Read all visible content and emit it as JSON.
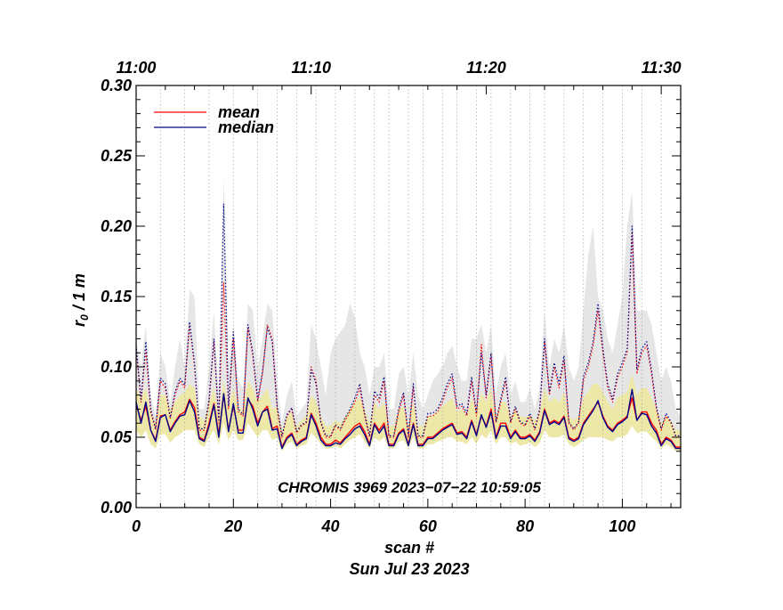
{
  "chart_data": {
    "type": "line",
    "title": "",
    "xlabel": "scan #",
    "date_label": "Sun Jul 23 2023",
    "ylabel": "r",
    "ylabel_sub": "0",
    "ylabel_suffix": " / 1 m",
    "annotation": "CHROMIS 3969 2023−07−22 10:59:05",
    "xlim": [
      0,
      112
    ],
    "ylim": [
      0.0,
      0.3
    ],
    "x_ticks": [
      0,
      20,
      40,
      60,
      80,
      100
    ],
    "x_tick_labels": [
      "0",
      "20",
      "40",
      "60",
      "80",
      "100"
    ],
    "y_ticks": [
      0.0,
      0.05,
      0.1,
      0.15,
      0.2,
      0.25,
      0.3
    ],
    "y_tick_labels": [
      "0.00",
      "0.05",
      "0.10",
      "0.15",
      "0.20",
      "0.25",
      "0.30"
    ],
    "top_axis": {
      "ticks": [
        0,
        36,
        72,
        108
      ],
      "labels": [
        "11:00",
        "11:10",
        "11:20",
        "11:30"
      ]
    },
    "dotted_vertical_lines": [
      5,
      10,
      15,
      20,
      25,
      29,
      33,
      37,
      41,
      45,
      49,
      52,
      56,
      59,
      63,
      66,
      70,
      73,
      77,
      81,
      84,
      88,
      92,
      96,
      100,
      104,
      108
    ],
    "legend": {
      "position": "top-left",
      "entries": [
        {
          "label": "mean",
          "color": "#ff0000"
        },
        {
          "label": "median",
          "color": "#00008b"
        }
      ]
    },
    "colors": {
      "mean": "#ff0000",
      "median": "#00008b",
      "gray_band": "#e6e6e6",
      "yellow_band": "#eee8a8"
    },
    "x": [
      0,
      1,
      2,
      3,
      4,
      5,
      6,
      7,
      8,
      9,
      10,
      11,
      12,
      13,
      14,
      15,
      16,
      17,
      18,
      19,
      20,
      21,
      22,
      23,
      24,
      25,
      26,
      27,
      28,
      29,
      30,
      31,
      32,
      33,
      34,
      35,
      36,
      37,
      38,
      39,
      40,
      41,
      42,
      43,
      44,
      45,
      46,
      47,
      48,
      49,
      50,
      51,
      52,
      53,
      54,
      55,
      56,
      57,
      58,
      59,
      60,
      61,
      62,
      63,
      64,
      65,
      66,
      67,
      68,
      69,
      70,
      71,
      72,
      73,
      74,
      75,
      76,
      77,
      78,
      79,
      80,
      81,
      82,
      83,
      84,
      85,
      86,
      87,
      88,
      89,
      90,
      91,
      92,
      93,
      94,
      95,
      96,
      97,
      98,
      99,
      100,
      101,
      102,
      103,
      104,
      105,
      106,
      107,
      108,
      109,
      110,
      111,
      112
    ],
    "series": [
      {
        "name": "mean",
        "style": "solid",
        "values": [
          0.073,
          0.062,
          0.072,
          0.055,
          0.048,
          0.065,
          0.066,
          0.055,
          0.061,
          0.066,
          0.068,
          0.077,
          0.071,
          0.05,
          0.048,
          0.06,
          0.074,
          0.052,
          0.08,
          0.055,
          0.072,
          0.055,
          0.055,
          0.077,
          0.072,
          0.06,
          0.068,
          0.072,
          0.056,
          0.058,
          0.043,
          0.05,
          0.053,
          0.045,
          0.048,
          0.05,
          0.067,
          0.06,
          0.05,
          0.045,
          0.045,
          0.048,
          0.046,
          0.05,
          0.054,
          0.058,
          0.06,
          0.054,
          0.045,
          0.06,
          0.055,
          0.06,
          0.045,
          0.045,
          0.053,
          0.056,
          0.045,
          0.06,
          0.045,
          0.045,
          0.05,
          0.05,
          0.053,
          0.056,
          0.058,
          0.06,
          0.053,
          0.054,
          0.05,
          0.062,
          0.052,
          0.065,
          0.058,
          0.07,
          0.05,
          0.06,
          0.06,
          0.05,
          0.055,
          0.05,
          0.05,
          0.052,
          0.048,
          0.054,
          0.07,
          0.06,
          0.062,
          0.06,
          0.065,
          0.05,
          0.048,
          0.05,
          0.06,
          0.065,
          0.07,
          0.075,
          0.065,
          0.058,
          0.055,
          0.06,
          0.062,
          0.065,
          0.078,
          0.062,
          0.068,
          0.068,
          0.06,
          0.055,
          0.045,
          0.05,
          0.048,
          0.043,
          0.043
        ]
      },
      {
        "name": "median",
        "style": "solid",
        "values": [
          0.075,
          0.06,
          0.075,
          0.055,
          0.047,
          0.064,
          0.066,
          0.054,
          0.06,
          0.065,
          0.066,
          0.076,
          0.068,
          0.049,
          0.047,
          0.058,
          0.073,
          0.05,
          0.081,
          0.054,
          0.074,
          0.053,
          0.053,
          0.078,
          0.07,
          0.058,
          0.068,
          0.07,
          0.055,
          0.056,
          0.042,
          0.049,
          0.052,
          0.044,
          0.047,
          0.049,
          0.066,
          0.058,
          0.048,
          0.044,
          0.044,
          0.046,
          0.045,
          0.049,
          0.052,
          0.056,
          0.058,
          0.052,
          0.044,
          0.059,
          0.053,
          0.058,
          0.044,
          0.044,
          0.052,
          0.055,
          0.044,
          0.059,
          0.044,
          0.044,
          0.049,
          0.049,
          0.052,
          0.055,
          0.057,
          0.059,
          0.052,
          0.053,
          0.049,
          0.061,
          0.051,
          0.066,
          0.057,
          0.068,
          0.049,
          0.058,
          0.058,
          0.049,
          0.054,
          0.049,
          0.049,
          0.051,
          0.047,
          0.053,
          0.069,
          0.059,
          0.061,
          0.059,
          0.064,
          0.049,
          0.047,
          0.049,
          0.059,
          0.064,
          0.069,
          0.076,
          0.064,
          0.057,
          0.054,
          0.059,
          0.061,
          0.064,
          0.084,
          0.062,
          0.067,
          0.066,
          0.058,
          0.053,
          0.044,
          0.049,
          0.047,
          0.042,
          0.042
        ]
      },
      {
        "name": "mean (upper)",
        "style": "dotted",
        "values": [
          0.113,
          0.075,
          0.112,
          0.068,
          0.055,
          0.09,
          0.085,
          0.063,
          0.08,
          0.09,
          0.085,
          0.13,
          0.1,
          0.055,
          0.055,
          0.075,
          0.118,
          0.06,
          0.16,
          0.07,
          0.12,
          0.068,
          0.065,
          0.128,
          0.108,
          0.075,
          0.095,
          0.13,
          0.12,
          0.07,
          0.05,
          0.065,
          0.07,
          0.053,
          0.058,
          0.06,
          0.1,
          0.09,
          0.06,
          0.05,
          0.05,
          0.058,
          0.055,
          0.062,
          0.068,
          0.075,
          0.085,
          0.065,
          0.05,
          0.08,
          0.075,
          0.09,
          0.05,
          0.05,
          0.068,
          0.08,
          0.05,
          0.085,
          0.05,
          0.05,
          0.065,
          0.065,
          0.068,
          0.075,
          0.085,
          0.092,
          0.07,
          0.072,
          0.065,
          0.09,
          0.065,
          0.116,
          0.078,
          0.108,
          0.06,
          0.075,
          0.09,
          0.06,
          0.07,
          0.06,
          0.058,
          0.065,
          0.055,
          0.068,
          0.118,
          0.08,
          0.1,
          0.085,
          0.105,
          0.06,
          0.055,
          0.06,
          0.09,
          0.1,
          0.115,
          0.14,
          0.11,
          0.085,
          0.075,
          0.092,
          0.1,
          0.11,
          0.195,
          0.095,
          0.11,
          0.115,
          0.095,
          0.07,
          0.055,
          0.065,
          0.06,
          0.05,
          0.05
        ]
      },
      {
        "name": "median (upper)",
        "style": "dotted",
        "values": [
          0.115,
          0.077,
          0.118,
          0.07,
          0.056,
          0.092,
          0.088,
          0.064,
          0.082,
          0.092,
          0.087,
          0.132,
          0.103,
          0.056,
          0.056,
          0.077,
          0.12,
          0.062,
          0.216,
          0.072,
          0.125,
          0.07,
          0.066,
          0.13,
          0.11,
          0.077,
          0.097,
          0.128,
          0.118,
          0.072,
          0.051,
          0.066,
          0.071,
          0.054,
          0.059,
          0.061,
          0.098,
          0.088,
          0.061,
          0.051,
          0.051,
          0.059,
          0.056,
          0.064,
          0.07,
          0.078,
          0.088,
          0.067,
          0.051,
          0.083,
          0.078,
          0.093,
          0.051,
          0.051,
          0.07,
          0.082,
          0.051,
          0.088,
          0.051,
          0.051,
          0.067,
          0.067,
          0.07,
          0.078,
          0.088,
          0.095,
          0.072,
          0.074,
          0.067,
          0.093,
          0.067,
          0.11,
          0.08,
          0.11,
          0.061,
          0.077,
          0.093,
          0.061,
          0.072,
          0.061,
          0.059,
          0.067,
          0.056,
          0.07,
          0.12,
          0.082,
          0.103,
          0.088,
          0.108,
          0.061,
          0.056,
          0.061,
          0.093,
          0.103,
          0.118,
          0.145,
          0.113,
          0.088,
          0.077,
          0.095,
          0.103,
          0.113,
          0.2,
          0.098,
          0.113,
          0.118,
          0.098,
          0.072,
          0.056,
          0.067,
          0.061,
          0.051,
          0.051
        ]
      }
    ],
    "bands": [
      {
        "name": "gray range",
        "lower": [
          0.06,
          0.06,
          0.06,
          0.055,
          0.05,
          0.06,
          0.06,
          0.055,
          0.058,
          0.06,
          0.062,
          0.065,
          0.062,
          0.052,
          0.05,
          0.058,
          0.065,
          0.052,
          0.07,
          0.055,
          0.065,
          0.055,
          0.055,
          0.068,
          0.065,
          0.058,
          0.062,
          0.065,
          0.055,
          0.056,
          0.045,
          0.05,
          0.052,
          0.046,
          0.048,
          0.05,
          0.062,
          0.058,
          0.05,
          0.046,
          0.046,
          0.048,
          0.046,
          0.05,
          0.053,
          0.056,
          0.058,
          0.053,
          0.046,
          0.057,
          0.053,
          0.057,
          0.046,
          0.046,
          0.052,
          0.054,
          0.046,
          0.057,
          0.046,
          0.046,
          0.05,
          0.05,
          0.052,
          0.054,
          0.056,
          0.057,
          0.052,
          0.053,
          0.05,
          0.058,
          0.051,
          0.06,
          0.056,
          0.064,
          0.05,
          0.057,
          0.057,
          0.05,
          0.053,
          0.05,
          0.05,
          0.051,
          0.048,
          0.052,
          0.064,
          0.057,
          0.058,
          0.057,
          0.06,
          0.05,
          0.048,
          0.05,
          0.057,
          0.06,
          0.064,
          0.068,
          0.06,
          0.056,
          0.053,
          0.057,
          0.058,
          0.06,
          0.07,
          0.06,
          0.062,
          0.062,
          0.057,
          0.053,
          0.046,
          0.05,
          0.048,
          0.045,
          0.045
        ],
        "upper": [
          0.12,
          0.1,
          0.13,
          0.08,
          0.065,
          0.11,
          0.1,
          0.075,
          0.1,
          0.12,
          0.1,
          0.155,
          0.15,
          0.07,
          0.07,
          0.1,
          0.14,
          0.08,
          0.235,
          0.1,
          0.13,
          0.09,
          0.085,
          0.145,
          0.14,
          0.1,
          0.12,
          0.145,
          0.14,
          0.09,
          0.06,
          0.08,
          0.09,
          0.065,
          0.07,
          0.075,
          0.13,
          0.12,
          0.1,
          0.08,
          0.11,
          0.12,
          0.125,
          0.13,
          0.145,
          0.135,
          0.11,
          0.1,
          0.08,
          0.1,
          0.1,
          0.11,
          0.07,
          0.07,
          0.095,
          0.1,
          0.08,
          0.11,
          0.08,
          0.07,
          0.08,
          0.09,
          0.095,
          0.1,
          0.11,
          0.115,
          0.1,
          0.09,
          0.09,
          0.12,
          0.12,
          0.13,
          0.11,
          0.13,
          0.08,
          0.1,
          0.11,
          0.08,
          0.09,
          0.075,
          0.075,
          0.085,
          0.07,
          0.085,
          0.14,
          0.1,
          0.12,
          0.11,
          0.13,
          0.1,
          0.09,
          0.1,
          0.14,
          0.18,
          0.2,
          0.15,
          0.14,
          0.12,
          0.11,
          0.13,
          0.15,
          0.2,
          0.225,
          0.14,
          0.14,
          0.14,
          0.13,
          0.11,
          0.09,
          0.1,
          0.09,
          0.07,
          0.065
        ]
      },
      {
        "name": "yellow range",
        "lower": [
          0.055,
          0.05,
          0.055,
          0.045,
          0.042,
          0.052,
          0.052,
          0.046,
          0.05,
          0.052,
          0.055,
          0.055,
          0.055,
          0.045,
          0.043,
          0.05,
          0.055,
          0.045,
          0.06,
          0.048,
          0.055,
          0.048,
          0.048,
          0.06,
          0.055,
          0.05,
          0.055,
          0.055,
          0.048,
          0.05,
          0.04,
          0.045,
          0.047,
          0.042,
          0.044,
          0.045,
          0.053,
          0.05,
          0.045,
          0.042,
          0.042,
          0.044,
          0.042,
          0.045,
          0.048,
          0.05,
          0.052,
          0.047,
          0.042,
          0.05,
          0.047,
          0.05,
          0.042,
          0.042,
          0.047,
          0.048,
          0.042,
          0.05,
          0.042,
          0.042,
          0.045,
          0.045,
          0.047,
          0.048,
          0.05,
          0.05,
          0.047,
          0.047,
          0.045,
          0.05,
          0.045,
          0.052,
          0.049,
          0.055,
          0.045,
          0.05,
          0.05,
          0.045,
          0.047,
          0.044,
          0.045,
          0.046,
          0.043,
          0.046,
          0.055,
          0.05,
          0.05,
          0.05,
          0.052,
          0.045,
          0.043,
          0.045,
          0.048,
          0.05,
          0.05,
          0.05,
          0.05,
          0.048,
          0.047,
          0.05,
          0.05,
          0.052,
          0.058,
          0.053,
          0.054,
          0.054,
          0.05,
          0.047,
          0.042,
          0.045,
          0.043,
          0.04,
          0.04
        ],
        "upper": [
          0.085,
          0.078,
          0.085,
          0.068,
          0.06,
          0.08,
          0.08,
          0.07,
          0.075,
          0.08,
          0.082,
          0.088,
          0.085,
          0.065,
          0.062,
          0.075,
          0.085,
          0.065,
          0.09,
          0.07,
          0.085,
          0.07,
          0.07,
          0.09,
          0.085,
          0.075,
          0.08,
          0.085,
          0.07,
          0.072,
          0.055,
          0.065,
          0.068,
          0.058,
          0.062,
          0.065,
          0.08,
          0.075,
          0.065,
          0.058,
          0.058,
          0.062,
          0.06,
          0.065,
          0.07,
          0.075,
          0.078,
          0.07,
          0.06,
          0.075,
          0.07,
          0.075,
          0.058,
          0.058,
          0.07,
          0.072,
          0.058,
          0.075,
          0.058,
          0.058,
          0.065,
          0.065,
          0.068,
          0.072,
          0.075,
          0.078,
          0.068,
          0.07,
          0.065,
          0.078,
          0.068,
          0.082,
          0.075,
          0.085,
          0.065,
          0.075,
          0.075,
          0.065,
          0.07,
          0.065,
          0.064,
          0.066,
          0.062,
          0.068,
          0.085,
          0.075,
          0.078,
          0.075,
          0.082,
          0.065,
          0.062,
          0.065,
          0.078,
          0.082,
          0.088,
          0.088,
          0.082,
          0.075,
          0.07,
          0.078,
          0.08,
          0.082,
          0.095,
          0.08,
          0.085,
          0.085,
          0.078,
          0.07,
          0.06,
          0.065,
          0.062,
          0.055,
          0.055
        ]
      }
    ]
  }
}
